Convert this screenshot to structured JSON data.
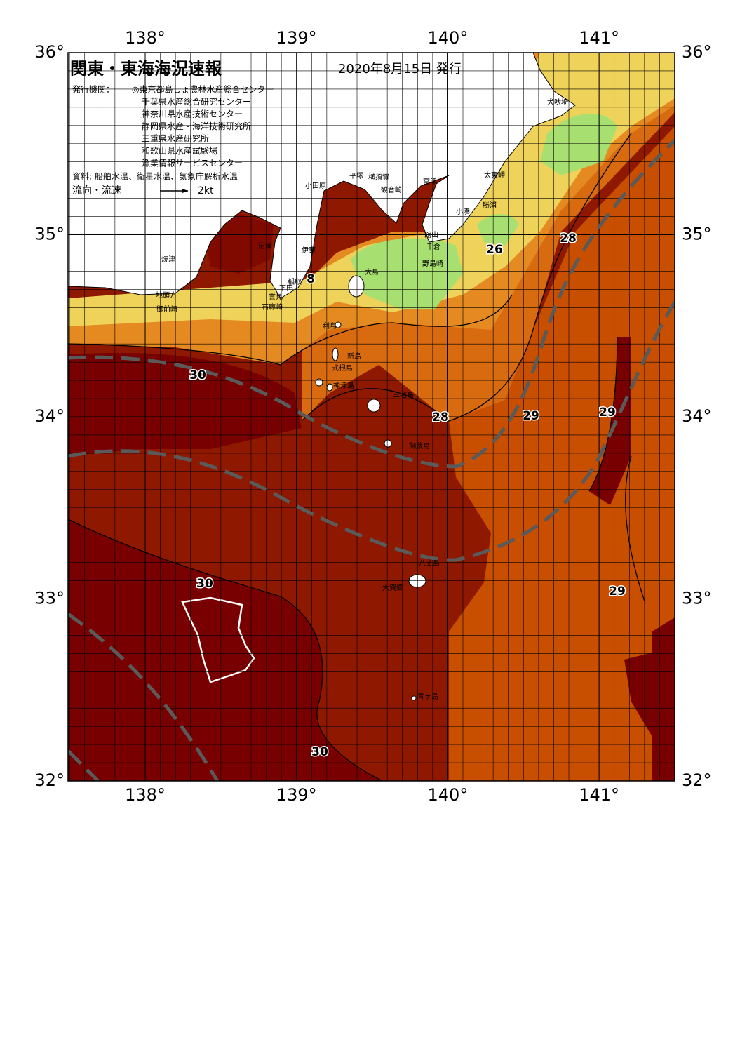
{
  "header": {
    "title": "関東・東海海況速報",
    "date": "2020年8月15日 発行",
    "issuer_label": "発行機関：",
    "issuers": [
      "◎東京都島しょ農林水産総合センター",
      "千葉県水産総合研究センター",
      "神奈川県水産技術センター",
      "静岡県水産・海洋技術研究所",
      "三重県水産研究所",
      "和歌山県水産試験場",
      "漁業情報サービスセンター"
    ],
    "source": "資料: 船舶水温、衛星水温、気象庁解析水温",
    "legend_label": "流向・流速",
    "legend_speed": "2kt"
  },
  "map": {
    "lon_lim": [
      137.49,
      141.5
    ],
    "lat_lim": [
      32,
      36
    ],
    "lon_ticks": [
      {
        "value": 138,
        "label": "138°"
      },
      {
        "value": 139,
        "label": "139°"
      },
      {
        "value": 140,
        "label": "140°"
      },
      {
        "value": 141,
        "label": "141°"
      }
    ],
    "lat_ticks": [
      {
        "value": 36,
        "label": "36°"
      },
      {
        "value": 35,
        "label": "35°"
      },
      {
        "value": 34,
        "label": "34°"
      },
      {
        "value": 33,
        "label": "33°"
      },
      {
        "value": 32,
        "label": "32°"
      }
    ],
    "places": [
      "犬吠埼",
      "太東岬",
      "勝浦",
      "小湊",
      "館山",
      "千倉",
      "野島崎",
      "富津",
      "観音崎",
      "横須賀",
      "平塚",
      "小田原",
      "沼津",
      "伊東",
      "稲取",
      "下田",
      "雲見",
      "石廊崎",
      "焼津",
      "地頭方",
      "御前崎",
      "大島",
      "利島",
      "新島",
      "式根島",
      "神津島",
      "三宅島",
      "御蔵島",
      "八丈島",
      "大賀郷",
      "青ヶ島"
    ],
    "isotherm_labels": [
      30,
      28,
      29,
      29,
      26,
      28,
      8,
      30,
      29,
      30
    ]
  }
}
